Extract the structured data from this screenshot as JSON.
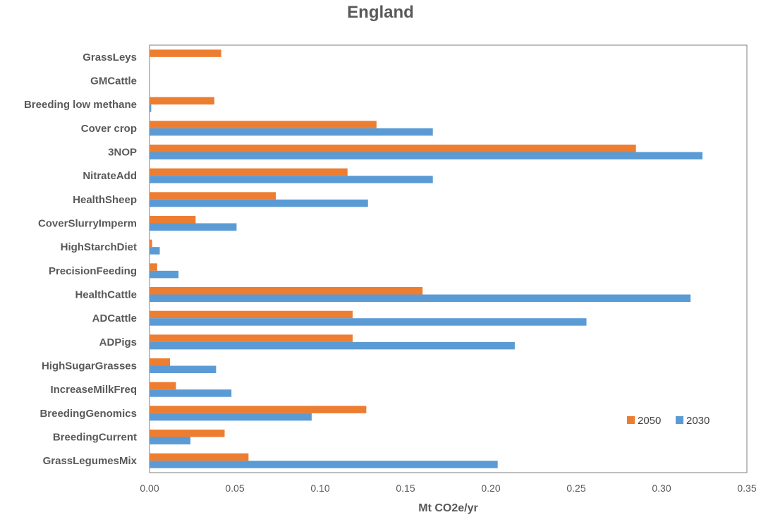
{
  "chart_data": {
    "type": "bar",
    "orientation": "horizontal",
    "title": "England",
    "xlabel": "Mt CO2e/yr",
    "ylabel": "",
    "xlim": [
      0,
      0.35
    ],
    "xticks": [
      "0.00",
      "0.05",
      "0.10",
      "0.15",
      "0.20",
      "0.25",
      "0.30",
      "0.35"
    ],
    "grid": false,
    "legend_position": "right",
    "categories": [
      "GrassLeys",
      "GMCattle",
      "Breeding low methane",
      "Cover crop",
      "3NOP",
      "NitrateAdd",
      "HealthSheep",
      "CoverSlurryImperm",
      "HighStarchDiet",
      "PrecisionFeeding",
      "HealthCattle",
      "ADCattle",
      "ADPigs",
      "HighSugarGrasses",
      "IncreaseMilkFreq",
      "BreedingGenomics",
      "BreedingCurrent",
      "GrassLegumesMix"
    ],
    "series": [
      {
        "name": "2050",
        "color": "#ED7D31",
        "values": [
          0.042,
          0.0,
          0.038,
          0.133,
          0.285,
          0.116,
          0.074,
          0.027,
          0.0015,
          0.0045,
          0.16,
          0.119,
          0.119,
          0.012,
          0.0155,
          0.127,
          0.044,
          0.058
        ]
      },
      {
        "name": "2030",
        "color": "#5B9BD5",
        "values": [
          0.0,
          0.0,
          0.001,
          0.166,
          0.324,
          0.166,
          0.128,
          0.051,
          0.006,
          0.017,
          0.317,
          0.256,
          0.214,
          0.039,
          0.048,
          0.095,
          0.024,
          0.204
        ]
      }
    ]
  }
}
